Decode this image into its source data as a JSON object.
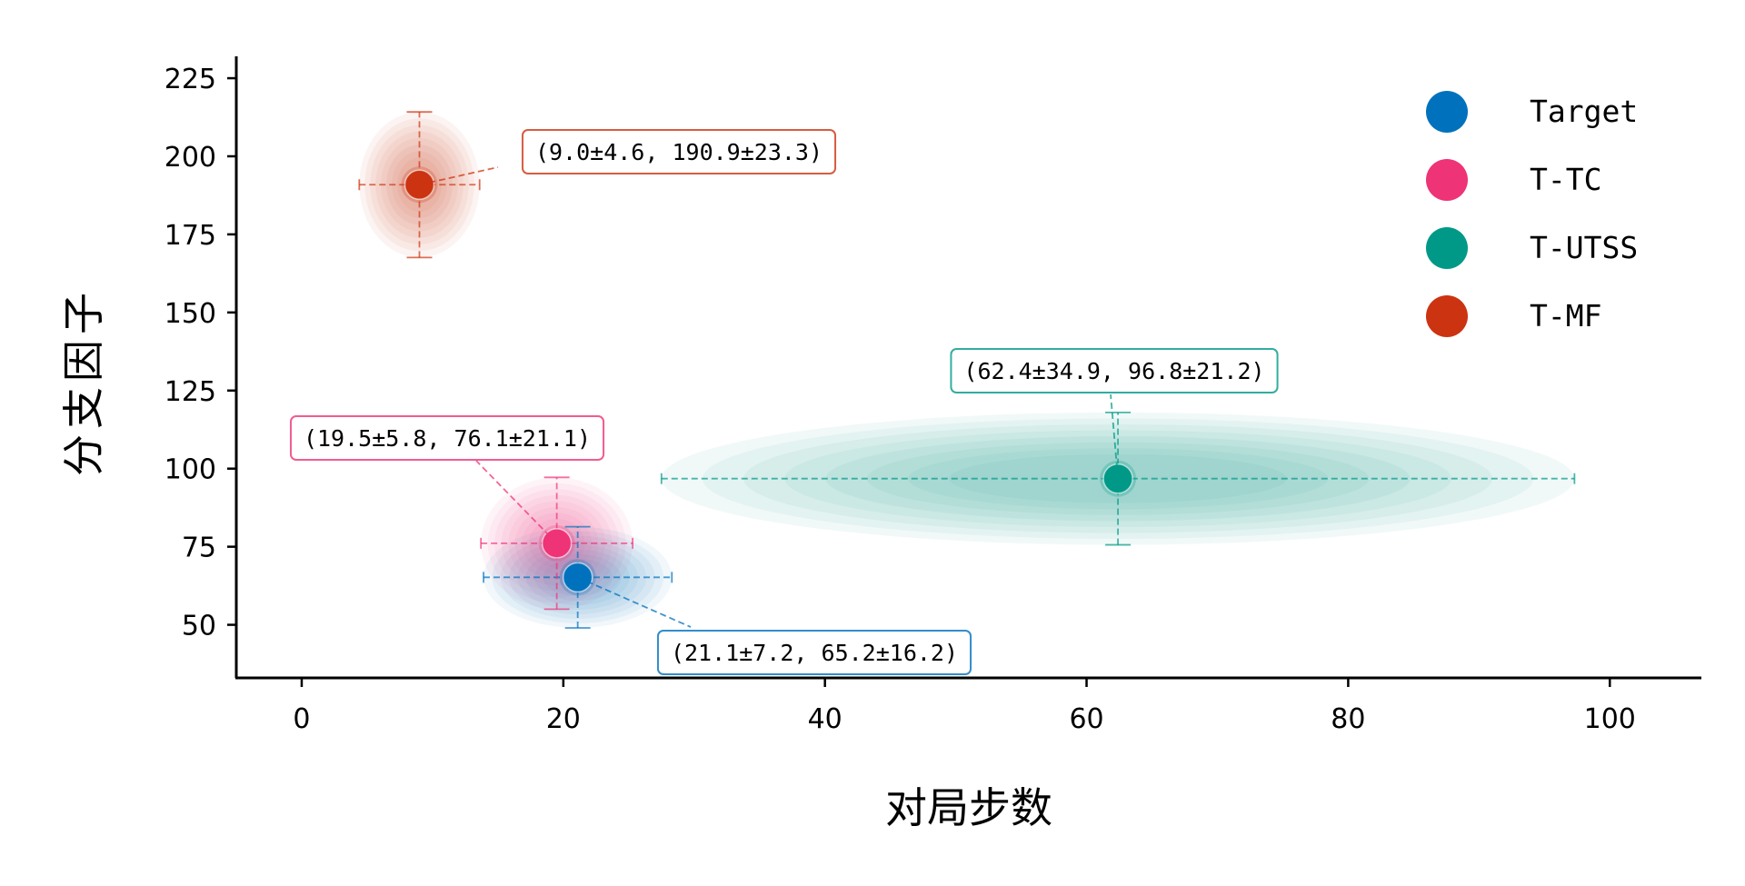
{
  "chart_data": {
    "type": "scatter",
    "title": "",
    "xlabel": "对局步数",
    "ylabel": "分支因子",
    "xlim": [
      -5,
      107
    ],
    "ylim": [
      33,
      232
    ],
    "xticks": [
      0,
      20,
      40,
      60,
      80,
      100
    ],
    "yticks": [
      50,
      75,
      100,
      125,
      150,
      175,
      200,
      225
    ],
    "legend_position": "top-right",
    "grid": false,
    "series": [
      {
        "name": "Target",
        "color": "#0072BD",
        "x": 21.1,
        "x_std": 7.2,
        "y": 65.2,
        "y_std": 16.2,
        "annotation": "(21.1±7.2, 65.2±16.2)"
      },
      {
        "name": "T-TC",
        "color": "#EE3377",
        "x": 19.5,
        "x_std": 5.8,
        "y": 76.1,
        "y_std": 21.1,
        "annotation": "(19.5±5.8, 76.1±21.1)"
      },
      {
        "name": "T-UTSS",
        "color": "#009988",
        "x": 62.4,
        "x_std": 34.9,
        "y": 96.8,
        "y_std": 21.2,
        "annotation": "(62.4±34.9, 96.8±21.2)"
      },
      {
        "name": "T-MF",
        "color": "#CC3311",
        "x": 9.0,
        "x_std": 4.6,
        "y": 190.9,
        "y_std": 23.3,
        "annotation": "(9.0±4.6, 190.9±23.3)"
      }
    ]
  }
}
